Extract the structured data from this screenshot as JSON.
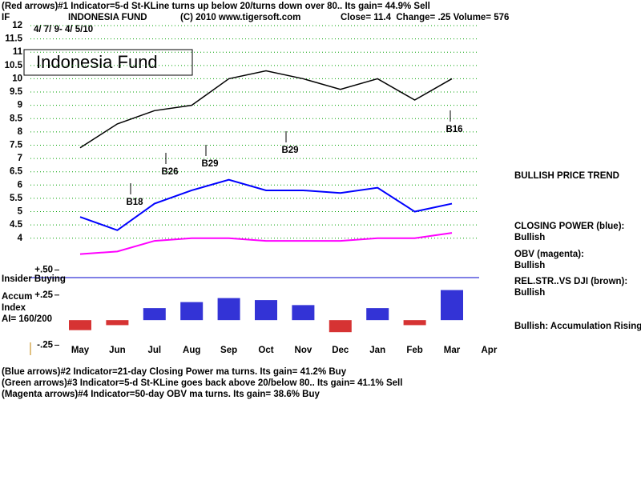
{
  "header": {
    "line1": "(Red arrows)#1 Indicator=5-d St-KLine turns up below 20/turns down over 80.. Its gain= 44.9% Sell",
    "symbol": "IF",
    "copyright": "(C) 2010 www.tigersoft.com",
    "quote": "Close= 11.4  Change= .25 Volume= 576",
    "date_range": "4/ 7/ 9- 4/ 5/10"
  },
  "side_notes": [
    "BULLISH PRICE TREND",
    "Bullish",
    "Bullish",
    "REL.STR..VS DJI (brown):",
    "Bullish",
    "Bullish: Accumulation Rising"
  ],
  "footer": [
    "(Blue arrows)#2 Indicator=21-day Closing Power ma turns. Its gain= 41.2% Buy",
    "(Green arrows)#3 Indicator=5-d St-KLine goes back above 20/below 80.. Its gain= 41.1% Sell",
    "(Magenta arrows)#4 Indicator=50-day OBV ma turns. Its gain= 38.6% Buy"
  ],
  "chart_data": [
    {
      "type": "line",
      "title": "INDONESIA FUND",
      "categories": [
        "May",
        "Jun",
        "Jul",
        "Aug",
        "Sep",
        "Oct",
        "Nov",
        "Dec",
        "Jan",
        "Feb",
        "Mar",
        "Apr"
      ],
      "series": [
        {
          "name": "Indonesia Fund",
          "color": "#000000",
          "values": [
            7.4,
            8.3,
            8.8,
            9.0,
            10.0,
            10.3,
            10.0,
            9.6,
            10.0,
            9.2,
            10.0,
            null
          ]
        },
        {
          "name": "CLOSING POWER (blue):",
          "color": "#0000ff",
          "values": [
            4.8,
            4.3,
            5.3,
            5.8,
            6.2,
            5.8,
            5.8,
            5.7,
            5.9,
            5.0,
            5.3,
            null
          ]
        },
        {
          "name": "OBV (magenta):",
          "color": "#ff00ff",
          "values": [
            3.4,
            3.5,
            3.9,
            4.0,
            4.0,
            3.9,
            3.9,
            3.9,
            4.0,
            4.0,
            4.2,
            null
          ]
        }
      ],
      "ylim": [
        3.3,
        12
      ],
      "yticks": [
        4,
        4.5,
        5,
        5.5,
        6,
        6.5,
        7,
        7.5,
        8,
        8.5,
        9,
        9.5,
        10,
        10.5,
        11,
        11.5,
        12
      ],
      "grid": true,
      "annotations": [
        "B18",
        "B26",
        "B29",
        "B29",
        "B16"
      ]
    },
    {
      "type": "bar",
      "title": "Insider Buying",
      "subtitle": "AI= 160/200",
      "axis_labels": [
        "Accum",
        "Index"
      ],
      "categories": [
        "May",
        "Jun",
        "Jul",
        "Aug",
        "Sep",
        "Oct",
        "Nov",
        "Dec",
        "Jan",
        "Feb",
        "Mar",
        "Apr"
      ],
      "values": [
        -0.1,
        -0.05,
        0.12,
        0.18,
        0.22,
        0.2,
        0.15,
        -0.12,
        0.12,
        -0.05,
        0.3,
        null
      ],
      "color": "#0000cc",
      "negative_color": "#cc0000",
      "ylim": [
        -0.31,
        0.56
      ],
      "yticks": [
        {
          "value": 0.5,
          "label": "+.50"
        },
        {
          "value": 0.25,
          "label": "+.25"
        },
        {
          "value": -0.25,
          "label": "-.25"
        }
      ]
    }
  ]
}
